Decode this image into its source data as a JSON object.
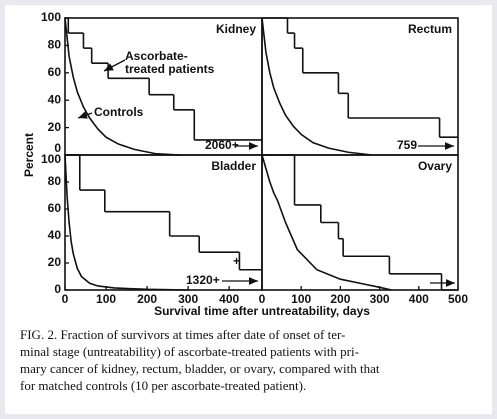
{
  "figure": {
    "ylabel": "Percent",
    "xlabel": "Survival time after untreatability, days"
  },
  "caption": {
    "lines": [
      "FIG. 2.   Fraction of survivors at times after date of onset of ter-",
      "minal stage (untreatability) of ascorbate-treated patients with pri-",
      "mary cancer of kidney, rectum, bladder, or ovary, compared with that",
      "for matched controls (10 per ascorbate-treated patient)."
    ]
  },
  "chart_data": [
    {
      "type": "line",
      "title": "Kidney",
      "xlim": [
        0,
        480
      ],
      "ylim": [
        0,
        100
      ],
      "yticks": [
        0,
        20,
        40,
        60,
        80,
        100
      ],
      "annotations": [
        "2060+"
      ],
      "series": [
        {
          "name": "Ascorbate-treated patients",
          "color": "#111111",
          "step": true,
          "x": [
            0,
            8,
            45,
            65,
            105,
            205,
            265,
            315
          ],
          "values": [
            100,
            89,
            78,
            67,
            56,
            44,
            33,
            11
          ]
        },
        {
          "name": "Controls",
          "color": "#111111",
          "x": [
            0,
            10,
            20,
            30,
            45,
            60,
            80,
            100,
            130,
            170,
            220,
            280
          ],
          "values": [
            100,
            72,
            57,
            46,
            35,
            27,
            19,
            13,
            8,
            4,
            1,
            0
          ]
        }
      ]
    },
    {
      "type": "line",
      "title": "Rectum",
      "xlim": [
        0,
        500
      ],
      "ylim": [
        0,
        100
      ],
      "annotations": [
        "759"
      ],
      "series": [
        {
          "color": "#111111",
          "step": true,
          "x": [
            0,
            65,
            83,
            104,
            195,
            220,
            453
          ],
          "values": [
            100,
            89,
            78,
            60,
            45,
            27,
            13
          ]
        },
        {
          "color": "#111111",
          "x": [
            0,
            10,
            20,
            30,
            45,
            60,
            80,
            100,
            130,
            170,
            220,
            280
          ],
          "values": [
            100,
            75,
            60,
            49,
            38,
            29,
            21,
            15,
            9,
            5,
            2,
            0
          ]
        }
      ]
    },
    {
      "type": "line",
      "title": "Bladder",
      "xlim": [
        0,
        480
      ],
      "ylim": [
        0,
        100
      ],
      "yticks": [
        0,
        20,
        40,
        60,
        80,
        100
      ],
      "xticks": [
        0,
        100,
        200,
        300,
        400
      ],
      "annotations": [
        "1320+",
        "+"
      ],
      "series": [
        {
          "color": "#111111",
          "step": true,
          "x": [
            0,
            36,
            97,
            255,
            327,
            425
          ],
          "values": [
            100,
            74,
            58,
            40,
            28,
            15
          ]
        },
        {
          "color": "#111111",
          "x": [
            0,
            5,
            10,
            15,
            20,
            30,
            40,
            60,
            80,
            120,
            200,
            300
          ],
          "values": [
            100,
            70,
            50,
            36,
            27,
            16,
            10,
            5,
            3,
            1.5,
            0.5,
            0
          ]
        }
      ]
    },
    {
      "type": "line",
      "title": "Ovary",
      "xlim": [
        0,
        500
      ],
      "ylim": [
        0,
        100
      ],
      "xticks": [
        0,
        100,
        200,
        300,
        400,
        500
      ],
      "annotations": [],
      "series": [
        {
          "color": "#111111",
          "step": true,
          "x": [
            0,
            83,
            150,
            195,
            207,
            325,
            458
          ],
          "values": [
            100,
            63,
            50,
            38,
            25,
            12,
            0
          ]
        },
        {
          "color": "#111111",
          "x": [
            0,
            10,
            20,
            30,
            40,
            60,
            90,
            140,
            200,
            250,
            300,
            330
          ],
          "values": [
            100,
            90,
            80,
            72,
            66,
            50,
            30,
            15,
            8,
            5,
            2,
            0
          ]
        }
      ]
    }
  ]
}
